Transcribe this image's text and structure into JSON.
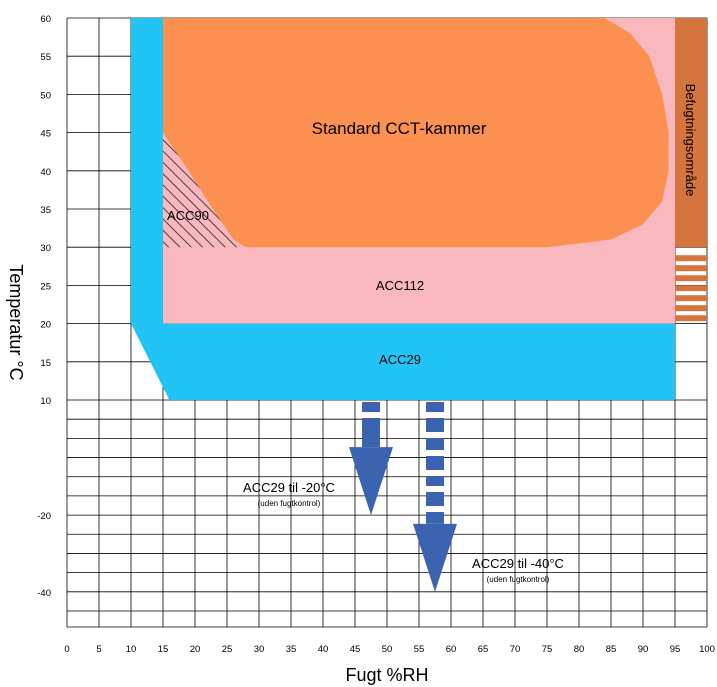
{
  "chart_data": {
    "type": "diagram",
    "xlabel": "Fugt %RH",
    "ylabel": "Temperatur °C",
    "x_ticks": [
      "0",
      "5",
      "10",
      "15",
      "20",
      "25",
      "30",
      "35",
      "40",
      "45",
      "50",
      "55",
      "60",
      "65",
      "70",
      "75",
      "80",
      "85",
      "90",
      "95",
      "100"
    ],
    "y_ticks": [
      {
        "label": "60",
        "value": 60
      },
      {
        "label": "55",
        "value": 55
      },
      {
        "label": "50",
        "value": 50
      },
      {
        "label": "45",
        "value": 45
      },
      {
        "label": "40",
        "value": 40
      },
      {
        "label": "35",
        "value": 35
      },
      {
        "label": "30",
        "value": 30
      },
      {
        "label": "25",
        "value": 25
      },
      {
        "label": "20",
        "value": 20
      },
      {
        "label": "15",
        "value": 15
      },
      {
        "label": "10",
        "value": 10
      },
      {
        "label": "-20",
        "value": -20
      },
      {
        "label": "-40",
        "value": -40
      }
    ],
    "xlim": [
      0,
      100
    ],
    "grid": true,
    "regions": [
      {
        "name": "ACC29",
        "color": "#22c4f5",
        "polygon": [
          [
            10,
            60
          ],
          [
            15,
            60
          ],
          [
            15,
            20
          ],
          [
            95,
            20
          ],
          [
            95,
            10
          ],
          [
            16,
            10
          ],
          [
            10,
            20
          ]
        ]
      },
      {
        "name": "ACC112",
        "color": "#f9b8bd",
        "polygon": [
          [
            15,
            60
          ],
          [
            95,
            60
          ],
          [
            95,
            20
          ],
          [
            15,
            20
          ]
        ]
      },
      {
        "name": "Standard CCT-kammer",
        "color": "#fb9050",
        "polygon": [
          [
            15,
            60
          ],
          [
            84,
            60
          ],
          [
            88,
            58
          ],
          [
            91,
            55
          ],
          [
            93,
            50
          ],
          [
            94,
            45
          ],
          [
            94,
            40
          ],
          [
            93,
            36
          ],
          [
            90,
            33
          ],
          [
            85,
            31
          ],
          [
            75,
            30
          ],
          [
            28,
            30
          ],
          [
            26,
            31
          ],
          [
            22,
            36
          ],
          [
            19,
            40
          ],
          [
            15,
            45
          ]
        ]
      },
      {
        "name": "ACC90",
        "hatched": true,
        "polygon": [
          [
            15,
            45
          ],
          [
            19,
            40
          ],
          [
            22,
            36
          ],
          [
            26,
            31
          ],
          [
            28,
            30
          ],
          [
            15,
            30
          ]
        ]
      }
    ],
    "humidification": {
      "label": "Befugtningsområde",
      "color": "#d6743d",
      "x": [
        95,
        100
      ],
      "solid_range": [
        30,
        60
      ],
      "stripe_range": [
        20,
        30
      ]
    },
    "arrows": [
      {
        "label": "ACC29 til -20°C",
        "note": "(uden fugtkontrol)",
        "x": 47.5,
        "from": 10,
        "to": -20,
        "color": "#3c63b0"
      },
      {
        "label": "ACC29 til -40°C",
        "note": "(uden fugtkontrol)",
        "x": 57.5,
        "from": 10,
        "to": -40,
        "color": "#3c63b0"
      }
    ]
  }
}
